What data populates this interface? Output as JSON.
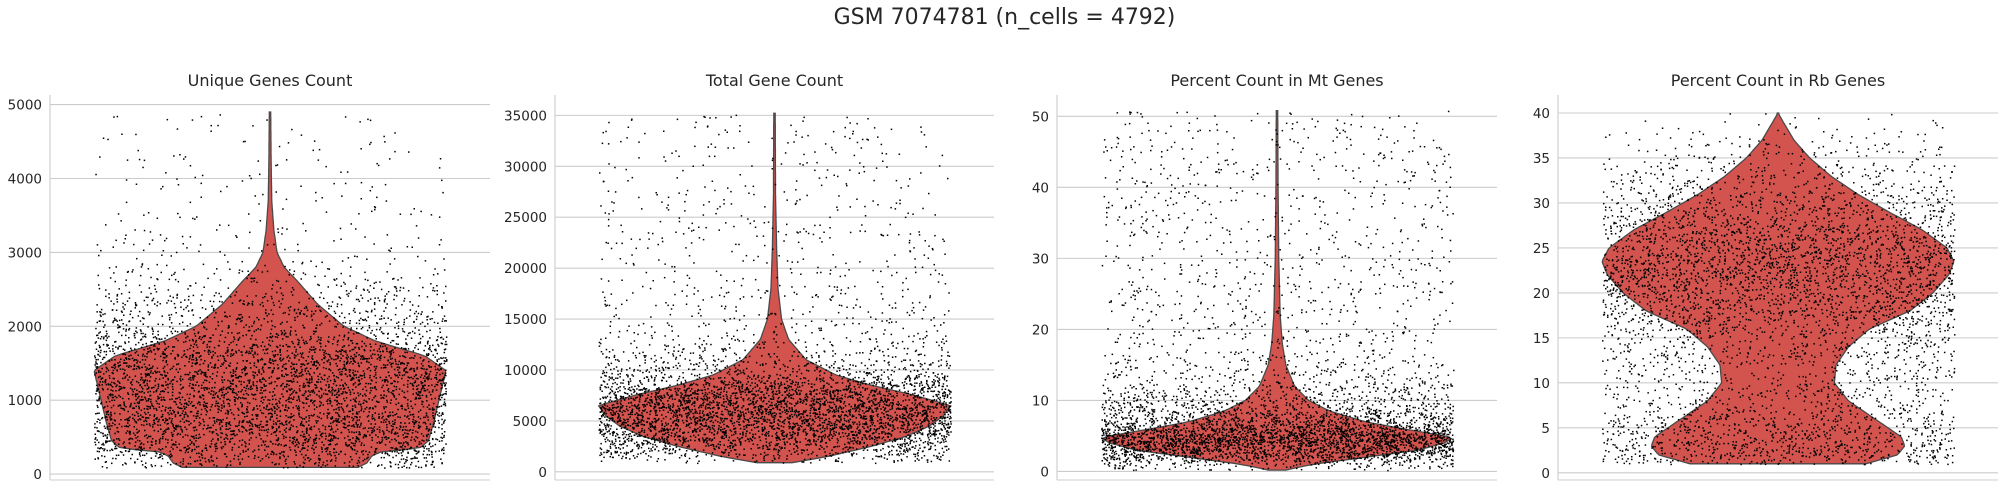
{
  "figure": {
    "suptitle": "GSM 7074781 (n_cells = 4792)",
    "violin_color": "#d3534e",
    "dot_color": "#000000"
  },
  "chart_data": [
    {
      "type": "violin",
      "title": "Unique Genes Count",
      "ylim": [
        -80,
        5130
      ],
      "yticks": [
        0,
        1000,
        2000,
        3000,
        4000,
        5000
      ],
      "ytick_labels": [
        "0",
        "1000",
        "2000",
        "3000",
        "4000",
        "5000"
      ],
      "n_points": 4792,
      "range": [
        90,
        4900
      ],
      "density_profile": [
        [
          90,
          0.5
        ],
        [
          150,
          0.55
        ],
        [
          250,
          0.58
        ],
        [
          300,
          0.63
        ],
        [
          350,
          0.85
        ],
        [
          450,
          0.9
        ],
        [
          700,
          0.93
        ],
        [
          1000,
          0.96
        ],
        [
          1200,
          0.98
        ],
        [
          1400,
          1.0
        ],
        [
          1600,
          0.88
        ],
        [
          1800,
          0.6
        ],
        [
          2000,
          0.42
        ],
        [
          2300,
          0.27
        ],
        [
          2600,
          0.16
        ],
        [
          2800,
          0.08
        ],
        [
          3000,
          0.04
        ],
        [
          3300,
          0.022
        ],
        [
          3700,
          0.01
        ],
        [
          4300,
          0.006
        ],
        [
          4900,
          0.004
        ]
      ]
    },
    {
      "type": "violin",
      "title": "Total Gene Count",
      "ylim": [
        -800,
        37000
      ],
      "yticks": [
        0,
        5000,
        10000,
        15000,
        20000,
        25000,
        30000,
        35000
      ],
      "ytick_labels": [
        "0",
        "5000",
        "10000",
        "15000",
        "20000",
        "25000",
        "30000",
        "35000"
      ],
      "n_points": 4792,
      "range": [
        900,
        35200
      ],
      "density_profile": [
        [
          900,
          0.1
        ],
        [
          1500,
          0.3
        ],
        [
          2500,
          0.55
        ],
        [
          3500,
          0.75
        ],
        [
          4500,
          0.88
        ],
        [
          5500,
          0.96
        ],
        [
          6500,
          1.0
        ],
        [
          7500,
          0.8
        ],
        [
          8500,
          0.55
        ],
        [
          9500,
          0.35
        ],
        [
          11000,
          0.18
        ],
        [
          13000,
          0.08
        ],
        [
          15000,
          0.04
        ],
        [
          18000,
          0.02
        ],
        [
          22000,
          0.012
        ],
        [
          27000,
          0.006
        ],
        [
          35200,
          0.004
        ]
      ]
    },
    {
      "type": "violin",
      "title": "Percent Count in Mt Genes",
      "ylim": [
        -1.2,
        53
      ],
      "yticks": [
        0,
        10,
        20,
        30,
        40,
        50
      ],
      "ytick_labels": [
        "0",
        "10",
        "20",
        "30",
        "40",
        "50"
      ],
      "n_points": 4792,
      "range": [
        0.2,
        50.8
      ],
      "density_profile": [
        [
          0.2,
          0.05
        ],
        [
          1,
          0.2
        ],
        [
          2,
          0.5
        ],
        [
          3,
          0.8
        ],
        [
          4,
          0.95
        ],
        [
          4.8,
          1.0
        ],
        [
          6,
          0.72
        ],
        [
          7,
          0.5
        ],
        [
          8.5,
          0.3
        ],
        [
          10,
          0.18
        ],
        [
          12,
          0.1
        ],
        [
          15,
          0.05
        ],
        [
          18,
          0.03
        ],
        [
          22,
          0.018
        ],
        [
          30,
          0.01
        ],
        [
          40,
          0.006
        ],
        [
          50.8,
          0.004
        ]
      ]
    },
    {
      "type": "violin",
      "title": "Percent Count in Rb Genes",
      "ylim": [
        -0.8,
        42
      ],
      "yticks": [
        0,
        5,
        10,
        15,
        20,
        25,
        30,
        35,
        40
      ],
      "ytick_labels": [
        "0",
        "5",
        "10",
        "15",
        "20",
        "25",
        "30",
        "35",
        "40"
      ],
      "n_points": 4792,
      "range": [
        1,
        40
      ],
      "density_profile": [
        [
          1,
          0.5
        ],
        [
          2,
          0.68
        ],
        [
          3,
          0.72
        ],
        [
          4,
          0.7
        ],
        [
          6,
          0.55
        ],
        [
          8,
          0.4
        ],
        [
          10,
          0.32
        ],
        [
          12,
          0.33
        ],
        [
          14,
          0.4
        ],
        [
          16,
          0.52
        ],
        [
          18,
          0.75
        ],
        [
          20,
          0.88
        ],
        [
          22,
          0.97
        ],
        [
          23.5,
          1.0
        ],
        [
          25,
          0.96
        ],
        [
          27,
          0.82
        ],
        [
          29,
          0.63
        ],
        [
          31,
          0.45
        ],
        [
          33,
          0.3
        ],
        [
          35,
          0.18
        ],
        [
          37,
          0.09
        ],
        [
          39,
          0.03
        ],
        [
          40,
          0.0
        ]
      ]
    }
  ]
}
